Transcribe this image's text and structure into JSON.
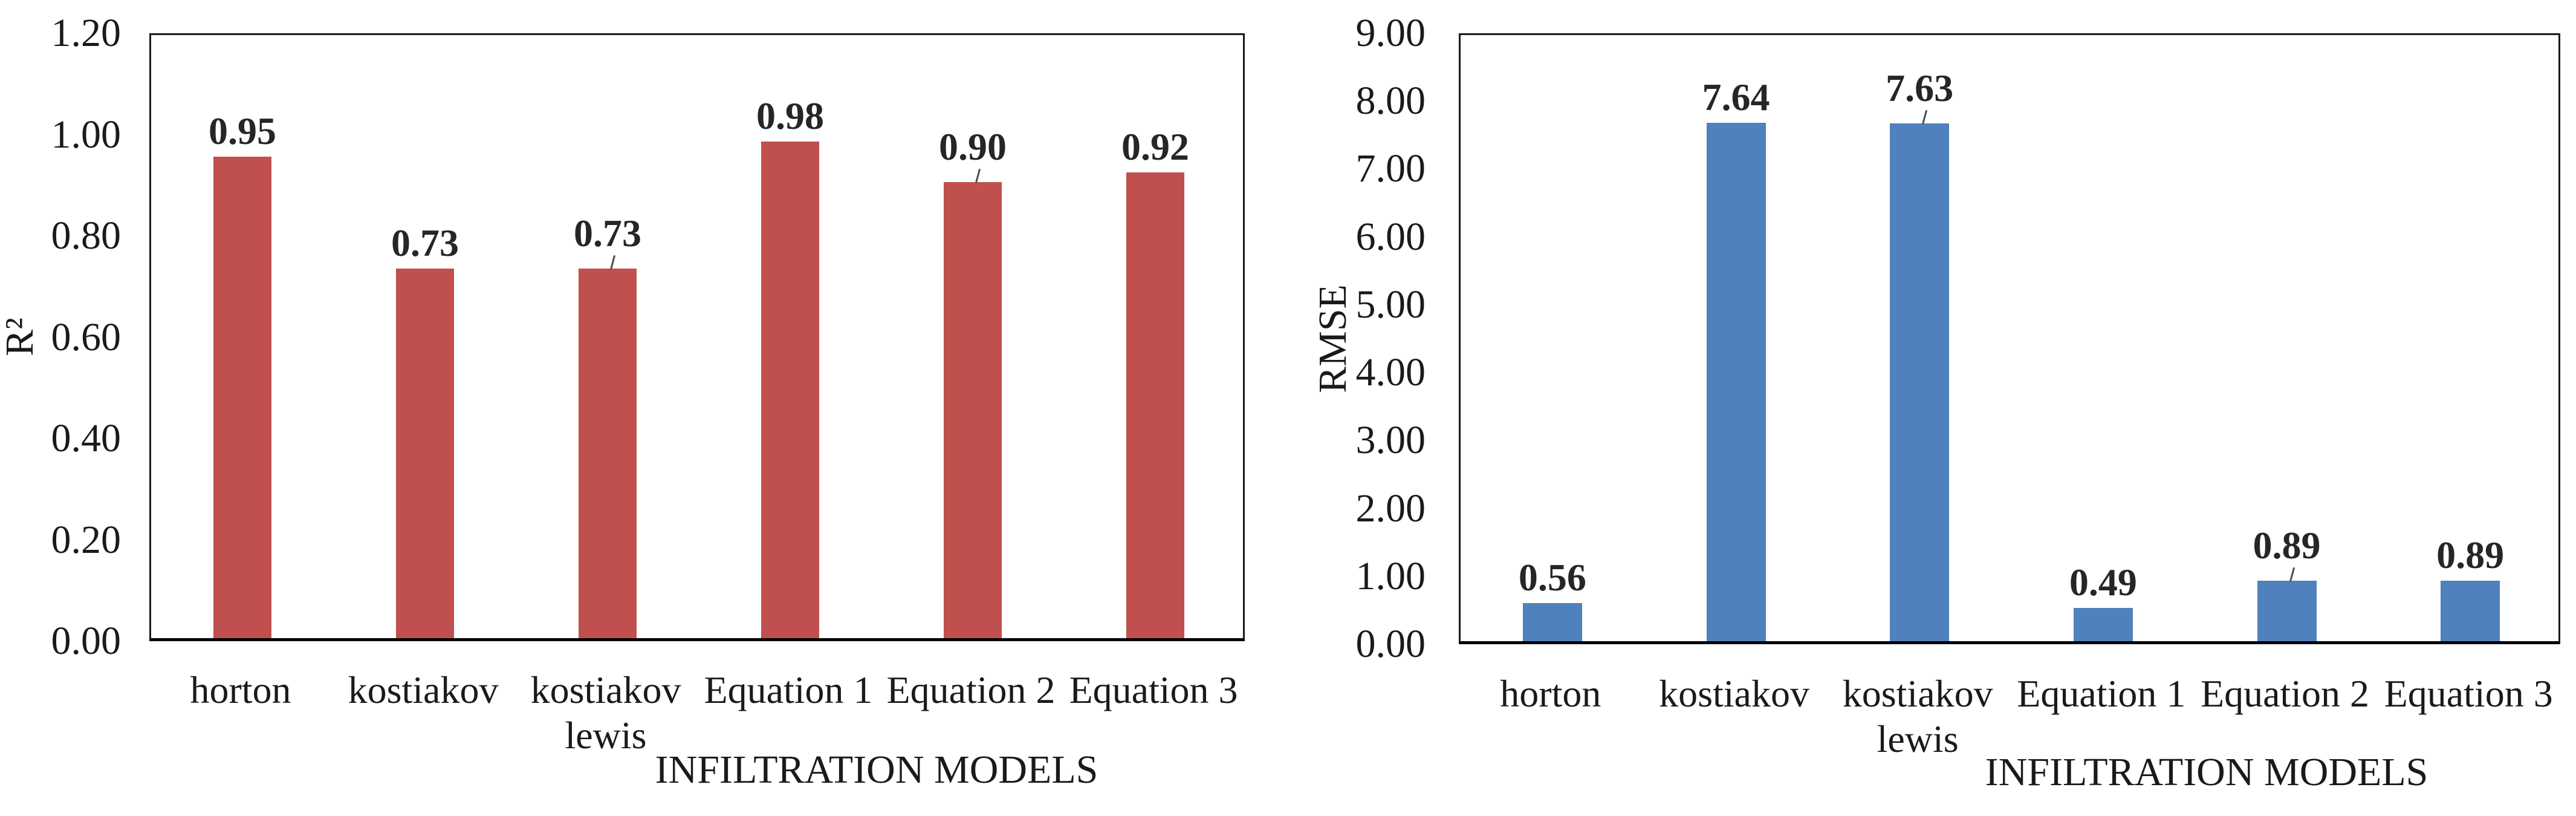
{
  "figure": {
    "background": "#ffffff",
    "text_color": "#1a1a1a"
  },
  "chart_data": [
    {
      "type": "bar",
      "title": "",
      "ylabel": "R²",
      "xlabel": "INFILTRATION MODELS",
      "categories": [
        "horton",
        "kostiakov",
        "kostiakov\nlewis",
        "Equation 1",
        "Equation 2",
        "Equation 3"
      ],
      "values": [
        0.95,
        0.73,
        0.73,
        0.98,
        0.9,
        0.92
      ],
      "data_labels": [
        "0.95",
        "0.73",
        "0.73",
        "0.98",
        "0.90",
        "0.92"
      ],
      "leader_lines": [
        false,
        false,
        true,
        false,
        true,
        false
      ],
      "bar_color": "#C0504D",
      "ylim": [
        0,
        1.2
      ],
      "ytick_step": 0.2,
      "ytick_labels": [
        "0.00",
        "0.20",
        "0.40",
        "0.60",
        "0.80",
        "1.00",
        "1.20"
      ],
      "grid": false,
      "legend": "none"
    },
    {
      "type": "bar",
      "title": "",
      "ylabel": "RMSE",
      "xlabel": "INFILTRATION MODELS",
      "categories": [
        "horton",
        "kostiakov",
        "kostiakov\nlewis",
        "Equation 1",
        "Equation 2",
        "Equation 3"
      ],
      "values": [
        0.56,
        7.64,
        7.63,
        0.49,
        0.89,
        0.89
      ],
      "data_labels": [
        "0.56",
        "7.64",
        "7.63",
        "0.49",
        "0.89",
        "0.89"
      ],
      "leader_lines": [
        false,
        false,
        true,
        false,
        true,
        false
      ],
      "bar_color": "#4F81BD",
      "ylim": [
        0,
        9
      ],
      "ytick_step": 1,
      "ytick_labels": [
        "0.00",
        "1.00",
        "2.00",
        "3.00",
        "4.00",
        "5.00",
        "6.00",
        "7.00",
        "8.00",
        "9.00"
      ],
      "grid": false,
      "legend": "none"
    }
  ]
}
